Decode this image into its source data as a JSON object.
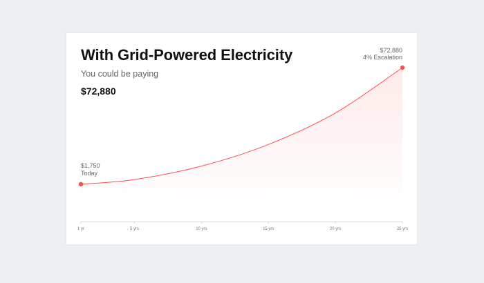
{
  "title": "With Grid-Powered Electricity",
  "subtitle": "You could be paying",
  "total": "$72,880",
  "chart_data": {
    "type": "area",
    "x": [
      1,
      5,
      10,
      15,
      20,
      25
    ],
    "xticks": [
      "1 yr",
      "5 yrs",
      "10 yrs",
      "15 yrs",
      "20 yrs",
      "25 yrs"
    ],
    "series": [
      {
        "values": [
          1750,
          4600,
          12800,
          26000,
          45200,
          72880
        ]
      }
    ],
    "ylim": [
      0,
      72880
    ],
    "xlim": [
      1,
      25
    ],
    "start_point": {
      "x": 1,
      "y": 1750
    },
    "end_point": {
      "x": 25,
      "y": 72880
    },
    "annotations": {
      "start_value": "$1,750",
      "start_label": "Today",
      "end_value": "$72,880",
      "end_label": "4% Escalation"
    },
    "line_color": "#ff4d4f",
    "fill_color": "#ffe9ec",
    "grid": false
  }
}
